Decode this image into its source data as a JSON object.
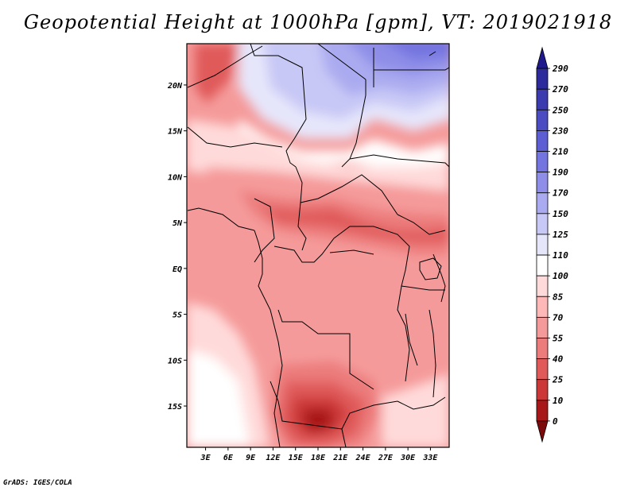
{
  "title": "Geopotential Height at 1000hPa [gpm], VT: 2019021918",
  "credit": "GrADS: IGES/COLA",
  "map": {
    "lon_labels": [
      "3E",
      "6E",
      "9E",
      "12E",
      "15E",
      "18E",
      "21E",
      "24E",
      "27E",
      "30E",
      "33E"
    ],
    "lat_labels": [
      "20N",
      "15N",
      "10N",
      "5N",
      "EQ",
      "5S",
      "10S",
      "15S"
    ],
    "lon_range_deg": [
      0.5,
      35.5
    ],
    "lat_range_deg": [
      -19.5,
      24.5
    ]
  },
  "colorbar": {
    "levels": [
      "290",
      "270",
      "250",
      "230",
      "210",
      "190",
      "170",
      "150",
      "125",
      "110",
      "100",
      "85",
      "70",
      "55",
      "40",
      "25",
      "10",
      "0"
    ],
    "colors": [
      "#1f1a8c",
      "#2c2a9c",
      "#3b3aae",
      "#4c4cc2",
      "#5e5ed4",
      "#7474e0",
      "#8e8ee8",
      "#aaaaf0",
      "#c8c8f6",
      "#e6e6fb",
      "#ffffff",
      "#ffdada",
      "#ffb8b8",
      "#f59a9a",
      "#ec7c7c",
      "#e05a5a",
      "#cc3838",
      "#a81818",
      "#7c0a0a"
    ]
  }
}
